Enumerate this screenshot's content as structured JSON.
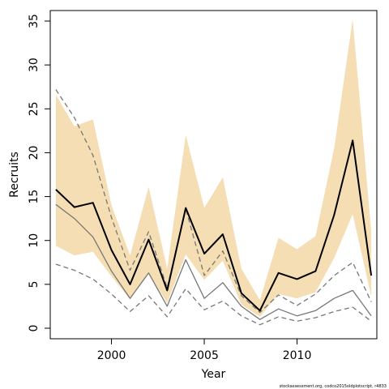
{
  "chart_data": {
    "type": "line",
    "title": "",
    "xlabel": "Year",
    "ylabel": "Recruits",
    "xlim": [
      1996.7,
      2014.3
    ],
    "ylim": [
      -1.2,
      36.2
    ],
    "x_ticks": [
      2000,
      2005,
      2010
    ],
    "y_ticks": [
      0,
      5,
      10,
      15,
      20,
      25,
      30,
      35
    ],
    "grid": false,
    "legend": "none",
    "x": [
      1997,
      1998,
      1999,
      2000,
      2001,
      2002,
      2003,
      2004,
      2005,
      2006,
      2007,
      2008,
      2009,
      2010,
      2011,
      2012,
      2013,
      2014
    ],
    "band": {
      "color": "#f5deb3",
      "lower": [
        9.4,
        8.3,
        8.7,
        5.9,
        3.3,
        6.2,
        2.9,
        8.4,
        5.5,
        7.7,
        2.7,
        1.3,
        3.9,
        3.4,
        4.1,
        8.0,
        13.0,
        3.6
      ],
      "upper": [
        26.6,
        23.0,
        23.8,
        14.0,
        8.3,
        16.1,
        6.8,
        22.0,
        13.7,
        17.2,
        6.8,
        3.2,
        10.3,
        9.0,
        10.5,
        20.5,
        35.2,
        11.0
      ]
    },
    "series": [
      {
        "role": "estimate",
        "color": "#000000",
        "dash": "solid",
        "width": 2,
        "values": [
          15.8,
          13.8,
          14.3,
          8.9,
          5.0,
          10.1,
          4.3,
          13.7,
          8.5,
          10.7,
          4.0,
          2.0,
          6.3,
          5.6,
          6.5,
          12.9,
          21.4,
          6.0
        ]
      },
      {
        "role": "comparison",
        "color": "#777777",
        "dash": "solid",
        "width": 1.3,
        "values": [
          14.1,
          12.5,
          10.4,
          6.5,
          3.4,
          6.3,
          2.5,
          7.8,
          3.4,
          5.2,
          2.5,
          1.0,
          2.2,
          1.4,
          2.0,
          3.4,
          4.3,
          1.4
        ]
      },
      {
        "role": "comparison-upper",
        "color": "#777777",
        "dash": "dashed",
        "width": 1.3,
        "values": [
          27.2,
          24.0,
          19.7,
          12.6,
          6.6,
          11.0,
          4.6,
          13.6,
          6.0,
          8.8,
          3.7,
          1.8,
          3.8,
          2.6,
          3.9,
          6.0,
          7.5,
          3.0
        ]
      },
      {
        "role": "comparison-lower",
        "color": "#777777",
        "dash": "dashed",
        "width": 1.3,
        "values": [
          7.3,
          6.6,
          5.6,
          3.9,
          1.9,
          3.7,
          1.3,
          4.5,
          2.1,
          3.1,
          1.4,
          0.4,
          1.3,
          0.8,
          1.2,
          1.9,
          2.4,
          0.8
        ]
      }
    ],
    "footnote": "stockassessment.org, codco2015oldplotscript, r4833"
  }
}
